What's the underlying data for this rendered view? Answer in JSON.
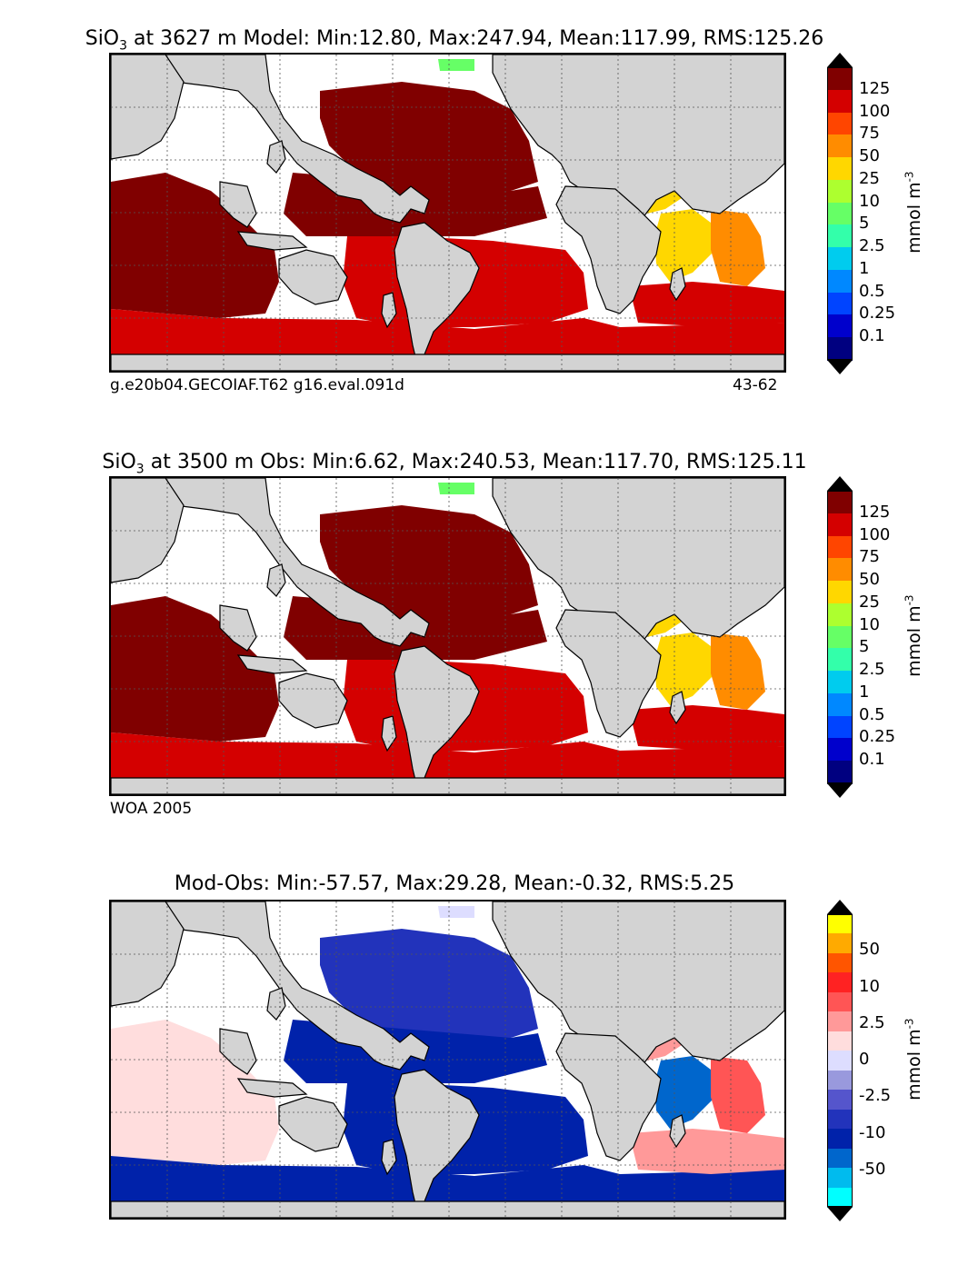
{
  "panels": [
    {
      "title_pre": "SiO",
      "title_sub": "3",
      "title_post": " at 3627 m Model: Min:12.80, Max:247.94, Mean:117.99, RMS:125.26",
      "footer_left": "g.e20b04.GECOIAF.T62 g16.eval.091d",
      "footer_right": "43-62",
      "colorbar": {
        "unit_pre": "mmol m",
        "unit_sup": "-3",
        "ticks": [
          "125",
          "100",
          "75",
          "50",
          "25",
          "10",
          "5",
          "2.5",
          "1",
          "0.5",
          "0.25",
          "0.1"
        ],
        "colors": [
          "#800000",
          "#d40000",
          "#ff4500",
          "#ff8c00",
          "#ffd700",
          "#adff2f",
          "#66ff66",
          "#33ffaa",
          "#00ccee",
          "#0088ff",
          "#0044ff",
          "#0000cc",
          "#000080"
        ],
        "over_color": "#000000",
        "under_color": "#000000"
      }
    },
    {
      "title_pre": "SiO",
      "title_sub": "3",
      "title_post": " at 3500 m Obs: Min:6.62, Max:240.53, Mean:117.70, RMS:125.11",
      "footer_left": "WOA 2005",
      "footer_right": "",
      "colorbar": {
        "unit_pre": "mmol m",
        "unit_sup": "-3",
        "ticks": [
          "125",
          "100",
          "75",
          "50",
          "25",
          "10",
          "5",
          "2.5",
          "1",
          "0.5",
          "0.25",
          "0.1"
        ],
        "colors": [
          "#800000",
          "#d40000",
          "#ff4500",
          "#ff8c00",
          "#ffd700",
          "#adff2f",
          "#66ff66",
          "#33ffaa",
          "#00ccee",
          "#0088ff",
          "#0044ff",
          "#0000cc",
          "#000080"
        ],
        "over_color": "#000000",
        "under_color": "#000000"
      }
    },
    {
      "title_pre": "",
      "title_sub": "",
      "title_post": "Mod-Obs: Min:-57.57, Max:29.28, Mean:-0.32, RMS:5.25",
      "footer_left": "",
      "footer_right": "",
      "colorbar": {
        "unit_pre": "mmol m",
        "unit_sup": "-3",
        "ticks": [
          "50",
          "10",
          "2.5",
          "0",
          "-2.5",
          "-10",
          "-50"
        ],
        "colors": [
          "#ffff00",
          "#ffaa00",
          "#ff5500",
          "#ff2222",
          "#ff5555",
          "#ff9999",
          "#ffdddd",
          "#ddddff",
          "#9999dd",
          "#5555cc",
          "#2233bb",
          "#0022aa",
          "#0066cc",
          "#00bbee",
          "#00ffff"
        ],
        "over_color": "#000000",
        "under_color": "#000000"
      }
    }
  ],
  "chart_data": [
    {
      "type": "heatmap",
      "variable": "SiO3",
      "depth": "3627 m",
      "source": "Model",
      "stats": {
        "min": 12.8,
        "max": 247.94,
        "mean": 117.99,
        "rms": 125.26
      },
      "colorbar_levels": [
        0.1,
        0.25,
        0.5,
        1,
        2.5,
        5,
        10,
        25,
        50,
        75,
        100,
        125
      ],
      "unit": "mmol m-3",
      "region_values": {
        "north_pacific": 150,
        "central_pacific": 130,
        "south_pacific": 110,
        "indian_ocean": 125,
        "southern_ocean": 110,
        "north_atlantic": 35,
        "south_atlantic_west": 40,
        "south_atlantic_east": 70,
        "atlantic_south_band": 100,
        "arctic": 8
      }
    },
    {
      "type": "heatmap",
      "variable": "SiO3",
      "depth": "3500 m",
      "source": "Obs",
      "stats": {
        "min": 6.62,
        "max": 240.53,
        "mean": 117.7,
        "rms": 125.11
      },
      "colorbar_levels": [
        0.1,
        0.25,
        0.5,
        1,
        2.5,
        5,
        10,
        25,
        50,
        75,
        100,
        125
      ],
      "unit": "mmol m-3",
      "region_values": {
        "north_pacific": 150,
        "central_pacific": 130,
        "south_pacific": 110,
        "indian_ocean": 125,
        "southern_ocean": 115,
        "north_atlantic": 35,
        "south_atlantic_west": 40,
        "south_atlantic_east": 60,
        "atlantic_south_band": 105,
        "arctic": 8
      }
    },
    {
      "type": "heatmap",
      "variable": "SiO3 difference",
      "source": "Mod-Obs",
      "stats": {
        "min": -57.57,
        "max": 29.28,
        "mean": -0.32,
        "rms": 5.25
      },
      "colorbar_levels": [
        -50,
        -10,
        -2.5,
        0,
        2.5,
        10,
        50
      ],
      "unit": "mmol m-3",
      "region_values": {
        "north_pacific": -3,
        "central_pacific": -6,
        "south_pacific": -8,
        "indian_ocean": 2,
        "southern_ocean": -10,
        "north_atlantic": 3,
        "south_atlantic_west": -20,
        "south_atlantic_east": 5,
        "atlantic_south_band": 4,
        "arctic": 0
      }
    }
  ]
}
